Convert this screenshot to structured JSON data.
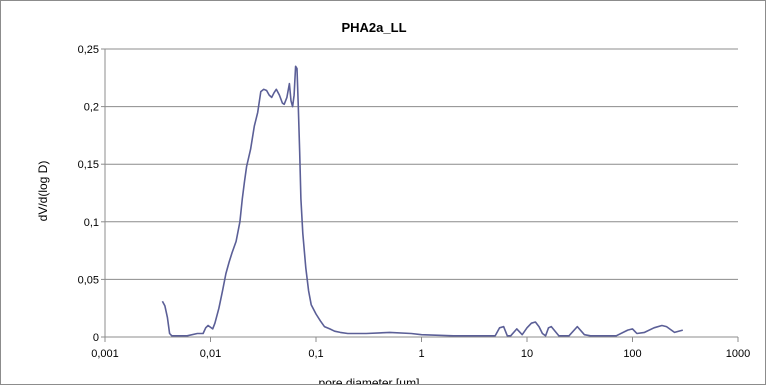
{
  "chart_data": {
    "type": "line",
    "title": "PHA2a_LL",
    "xlabel": "pore diameter [µm]",
    "ylabel": "dV/d(log D)",
    "xscale": "log",
    "xlim": [
      0.001,
      1000
    ],
    "ylim": [
      0,
      0.25
    ],
    "x_ticks": [
      "0,001",
      "0,01",
      "0,1",
      "1",
      "10",
      "100",
      "1000"
    ],
    "y_ticks": [
      "0",
      "0,05",
      "0,1",
      "0,15",
      "0,2",
      "0,25"
    ],
    "grid": "horizontal",
    "legend": "none",
    "line_color": "#5b5f97",
    "series": [
      {
        "x": [
          0.0035,
          0.0037,
          0.0039,
          0.0041,
          0.0043,
          0.0045,
          0.005,
          0.006,
          0.0075,
          0.0085,
          0.009,
          0.0095,
          0.0105,
          0.011,
          0.012,
          0.013,
          0.014,
          0.015,
          0.016,
          0.0175,
          0.019,
          0.02,
          0.021,
          0.022,
          0.024,
          0.026,
          0.028,
          0.03,
          0.032,
          0.034,
          0.036,
          0.038,
          0.04,
          0.042,
          0.045,
          0.048,
          0.05,
          0.053,
          0.056,
          0.058,
          0.06,
          0.062,
          0.064,
          0.066,
          0.068,
          0.07,
          0.072,
          0.075,
          0.08,
          0.085,
          0.09,
          0.1,
          0.11,
          0.12,
          0.135,
          0.15,
          0.17,
          0.2,
          0.3,
          0.5,
          0.8,
          1.0,
          2.0,
          5.0,
          5.5,
          6.0,
          6.5,
          7.0,
          8.0,
          9.0,
          10.0,
          11.0,
          12.0,
          13.0,
          14.0,
          15.0,
          16.0,
          17.0,
          20.0,
          25.0,
          30.0,
          35.0,
          40.0,
          50.0,
          70.0,
          90.0,
          100.0,
          110.0,
          130.0,
          160.0,
          190.0,
          210.0,
          250.0,
          300.0
        ],
        "y": [
          0.031,
          0.027,
          0.017,
          0.003,
          0.001,
          0.001,
          0.001,
          0.001,
          0.003,
          0.003,
          0.008,
          0.01,
          0.007,
          0.012,
          0.025,
          0.04,
          0.055,
          0.065,
          0.073,
          0.083,
          0.1,
          0.12,
          0.135,
          0.148,
          0.163,
          0.183,
          0.195,
          0.213,
          0.215,
          0.214,
          0.21,
          0.208,
          0.212,
          0.215,
          0.21,
          0.203,
          0.202,
          0.208,
          0.22,
          0.205,
          0.2,
          0.21,
          0.235,
          0.233,
          0.2,
          0.16,
          0.12,
          0.09,
          0.06,
          0.04,
          0.028,
          0.02,
          0.014,
          0.009,
          0.007,
          0.005,
          0.004,
          0.003,
          0.003,
          0.004,
          0.003,
          0.002,
          0.001,
          0.001,
          0.008,
          0.009,
          0.001,
          0.001,
          0.007,
          0.002,
          0.008,
          0.012,
          0.013,
          0.009,
          0.003,
          0.001,
          0.008,
          0.009,
          0.001,
          0.001,
          0.009,
          0.002,
          0.001,
          0.001,
          0.001,
          0.006,
          0.007,
          0.003,
          0.004,
          0.008,
          0.01,
          0.009,
          0.004,
          0.006
        ]
      }
    ]
  }
}
